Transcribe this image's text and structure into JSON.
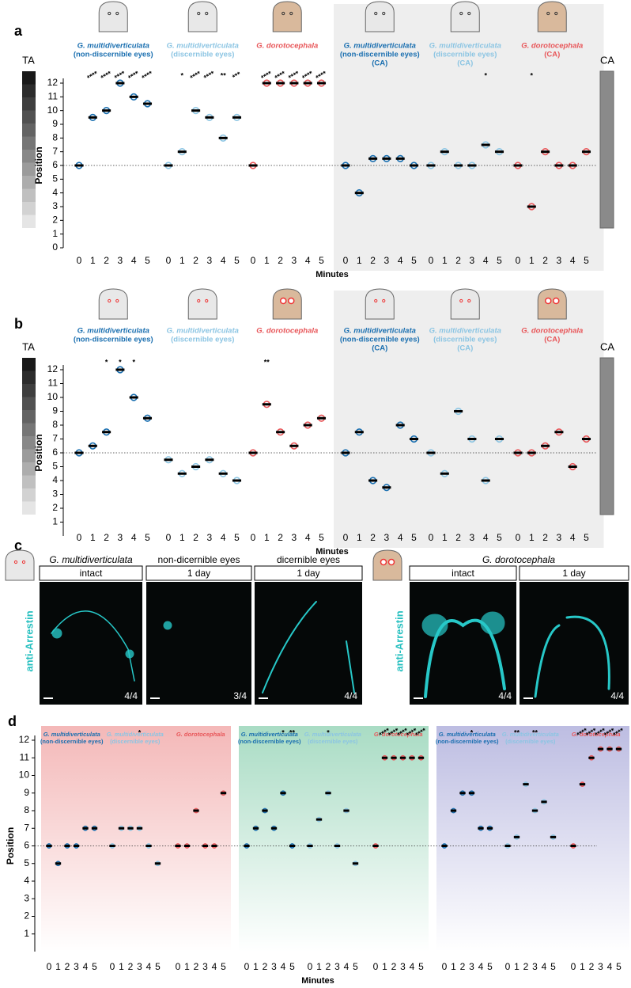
{
  "chart_data": [
    {
      "type": "dot",
      "label": "a",
      "ylabel": "Position",
      "xlabel": "Minutes",
      "ta_label": "TA",
      "ca_label": "CA",
      "categories": [
        0,
        1,
        2,
        3,
        4,
        5
      ],
      "ylim": [
        0,
        12
      ],
      "yticks": [
        0,
        1,
        2,
        3,
        4,
        5,
        6,
        7,
        8,
        9,
        10,
        11,
        12
      ],
      "reference_line": 6,
      "series": [
        {
          "name": [
            "G. multidiverticulata",
            "(non-discernible eyes)"
          ],
          "color": "#1a6fb0",
          "control": false,
          "values": [
            6,
            9.5,
            10,
            12,
            11,
            10.5
          ],
          "stars": [
            null,
            "****",
            "****",
            "****",
            "****",
            "****"
          ]
        },
        {
          "name": [
            "G. multidiverticulata",
            "(discernible eyes)"
          ],
          "color": "#8cc5e3",
          "control": false,
          "values": [
            6,
            7,
            10,
            9.5,
            8,
            9.5
          ],
          "stars": [
            null,
            "*",
            "****",
            "****",
            "**",
            "***"
          ]
        },
        {
          "name": [
            "G. dorotocephala"
          ],
          "color": "#e8575a",
          "control": false,
          "values": [
            6,
            12,
            12,
            12,
            12,
            12
          ],
          "stars": [
            null,
            "****",
            "****",
            "****",
            "****",
            "****"
          ]
        },
        {
          "name": [
            "G. multidiverticulata",
            "(non-discernible eyes)",
            "(CA)"
          ],
          "color": "#1a6fb0",
          "control": true,
          "values": [
            6,
            4,
            6.5,
            6.5,
            6.5,
            6
          ],
          "stars": [
            null,
            null,
            null,
            null,
            null,
            null
          ]
        },
        {
          "name": [
            "G. multidiverticulata",
            "(discernible eyes)",
            "(CA)"
          ],
          "color": "#8cc5e3",
          "control": true,
          "values": [
            6,
            7,
            6,
            6,
            7.5,
            7
          ],
          "stars": [
            null,
            null,
            null,
            null,
            "*",
            null
          ]
        },
        {
          "name": [
            "G. dorotocephala",
            "(CA)"
          ],
          "color": "#e8575a",
          "control": true,
          "values": [
            6,
            3,
            7,
            6,
            6,
            7
          ],
          "stars": [
            null,
            "*",
            null,
            null,
            null,
            null
          ]
        }
      ]
    },
    {
      "type": "dot",
      "label": "b",
      "ylabel": "Position",
      "xlabel": "Minutes",
      "ta_label": "TA",
      "ca_label": "CA",
      "categories": [
        0,
        1,
        2,
        3,
        4,
        5
      ],
      "ylim": [
        0,
        12
      ],
      "yticks": [
        1,
        2,
        3,
        4,
        5,
        6,
        7,
        8,
        9,
        10,
        11,
        12
      ],
      "reference_line": 6,
      "series": [
        {
          "name": [
            "G. multidiverticulata",
            "(non-discernible eyes)"
          ],
          "color": "#1a6fb0",
          "control": false,
          "values": [
            6,
            6.5,
            7.5,
            12,
            10,
            8.5
          ],
          "stars": [
            null,
            null,
            "*",
            "*",
            "*",
            null
          ]
        },
        {
          "name": [
            "G. multidiverticulata",
            "(discernible eyes)"
          ],
          "color": "#8cc5e3",
          "control": false,
          "values": [
            5.5,
            4.5,
            5,
            5.5,
            4.5,
            4
          ],
          "stars": [
            null,
            null,
            null,
            null,
            null,
            null
          ]
        },
        {
          "name": [
            "G. dorotocephala"
          ],
          "color": "#e8575a",
          "control": false,
          "values": [
            6,
            9.5,
            7.5,
            6.5,
            8,
            8.5
          ],
          "stars": [
            null,
            "**",
            null,
            null,
            null,
            null
          ]
        },
        {
          "name": [
            "G. multidiverticulata",
            "(non-discernible eyes)",
            "(CA)"
          ],
          "color": "#1a6fb0",
          "control": true,
          "values": [
            6,
            7.5,
            4,
            3.5,
            8,
            7
          ],
          "stars": [
            null,
            null,
            null,
            null,
            null,
            null
          ]
        },
        {
          "name": [
            "G. multidiverticulata",
            "(discernible eyes)",
            "(CA)"
          ],
          "color": "#8cc5e3",
          "control": true,
          "values": [
            6,
            4.5,
            9,
            7,
            4,
            7
          ],
          "stars": [
            null,
            null,
            null,
            null,
            null,
            null
          ]
        },
        {
          "name": [
            "G. dorotocephala",
            "(CA)"
          ],
          "color": "#e8575a",
          "control": true,
          "values": [
            6,
            6,
            6.5,
            7.5,
            5,
            7
          ],
          "stars": [
            null,
            null,
            null,
            null,
            null,
            null
          ]
        }
      ]
    },
    {
      "type": "dot",
      "label": "d",
      "ylabel": "Position",
      "xlabel": "Minutes",
      "categories": [
        0,
        1,
        2,
        3,
        4,
        5
      ],
      "ylim": [
        0,
        12
      ],
      "yticks": [
        1,
        2,
        3,
        4,
        5,
        6,
        7,
        8,
        9,
        10,
        11,
        12
      ],
      "reference_line": 6,
      "backgrounds": [
        "#f4b8b8",
        "#a9dcc4",
        "#bdbde2"
      ],
      "series": [
        {
          "name": [
            "G. multidiverticulata",
            "(non-discernible eyes)"
          ],
          "color": "#1a6fb0",
          "control": false,
          "values": [
            6,
            5,
            6,
            6,
            7,
            7
          ],
          "stars": [
            null,
            null,
            null,
            null,
            null,
            null
          ]
        },
        {
          "name": [
            "G. multidiverticulata",
            "(discernible eyes)"
          ],
          "color": "#8cc5e3",
          "control": false,
          "values": [
            6,
            7,
            7,
            7,
            6,
            5
          ],
          "stars": [
            null,
            null,
            null,
            "*",
            null,
            null
          ]
        },
        {
          "name": [
            "G. dorotocephala"
          ],
          "color": "#e8575a",
          "control": false,
          "values": [
            6,
            6,
            8,
            6,
            6,
            9
          ],
          "stars": [
            null,
            null,
            null,
            null,
            null,
            null
          ]
        },
        {
          "name": [
            "G. multidiverticulata",
            "(non-discernible eyes)"
          ],
          "color": "#1a6fb0",
          "control": false,
          "values": [
            6,
            7,
            8,
            7,
            9,
            6
          ],
          "stars": [
            null,
            null,
            null,
            null,
            "*",
            "**"
          ]
        },
        {
          "name": [
            "G. multidiverticulata",
            "(discernible eyes)"
          ],
          "color": "#8cc5e3",
          "control": false,
          "values": [
            6,
            7.5,
            9,
            6,
            8,
            5
          ],
          "stars": [
            null,
            null,
            "*",
            null,
            null,
            null
          ]
        },
        {
          "name": [
            "G. dorotocephala"
          ],
          "color": "#e8575a",
          "control": false,
          "values": [
            6,
            11,
            11,
            11,
            11,
            11
          ],
          "stars": [
            null,
            "****",
            "****",
            "****",
            "****",
            "****"
          ]
        },
        {
          "name": [
            "G. multidiverticulata",
            "(non-discernible eyes)"
          ],
          "color": "#1a6fb0",
          "control": false,
          "values": [
            6,
            8,
            9,
            9,
            7,
            7
          ],
          "stars": [
            null,
            null,
            null,
            "*",
            null,
            null
          ]
        },
        {
          "name": [
            "G. multidiverticulata",
            "(discernible eyes)"
          ],
          "color": "#8cc5e3",
          "control": false,
          "values": [
            6,
            6.5,
            9.5,
            8,
            8.5,
            6.5
          ],
          "stars": [
            null,
            "**",
            null,
            "**",
            null,
            null
          ]
        },
        {
          "name": [
            "G. dorotocephala"
          ],
          "color": "#e8575a",
          "control": false,
          "values": [
            6,
            9.5,
            11,
            11.5,
            11.5,
            11.5
          ],
          "stars": [
            null,
            "****",
            "****",
            "****",
            "****",
            "****"
          ]
        }
      ]
    }
  ],
  "panel_c": {
    "label": "c",
    "antibody": "anti-Arrestin",
    "left": {
      "titles": [
        "G. multidiverticulata",
        "non-dicernible eyes",
        "dicernible eyes"
      ],
      "images": [
        {
          "box": "intact",
          "count": "4/4"
        },
        {
          "box": "1 day",
          "count": "3/4"
        },
        {
          "box": "1 day",
          "count": "4/4"
        }
      ]
    },
    "right": {
      "title": "G. dorotocephala",
      "images": [
        {
          "box": "intact",
          "count": "4/4"
        },
        {
          "box": "1 day",
          "count": "4/4"
        }
      ]
    }
  }
}
